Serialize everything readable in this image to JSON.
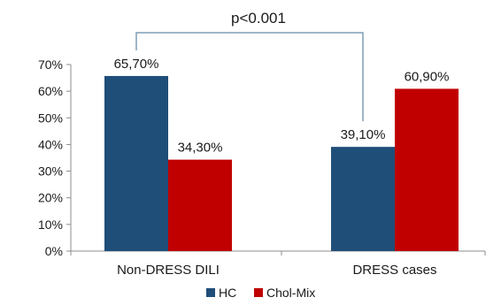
{
  "chart_data": {
    "type": "bar",
    "title": "",
    "xlabel": "",
    "ylabel": "",
    "categories": [
      "Non-DRESS DILI",
      "DRESS cases"
    ],
    "series": [
      {
        "name": "HC",
        "color": "#1f4e79",
        "values": [
          65.7,
          39.1
        ],
        "labels": [
          "65,70%",
          "39,10%"
        ]
      },
      {
        "name": "Chol-Mix",
        "color": "#c00000",
        "values": [
          34.3,
          60.9
        ],
        "labels": [
          "34,30%",
          "60,90%"
        ]
      }
    ],
    "ylim": [
      0,
      70
    ],
    "yticks": [
      0,
      10,
      20,
      30,
      40,
      50,
      60,
      70
    ],
    "ytick_labels": [
      "0%",
      "10%",
      "20%",
      "30%",
      "40%",
      "50%",
      "60%",
      "70%"
    ],
    "grid": false,
    "legend_position": "bottom",
    "annotation": {
      "text": "p<0.001",
      "from": "Non-DRESS DILI:HC",
      "to": "DRESS cases:HC"
    }
  }
}
